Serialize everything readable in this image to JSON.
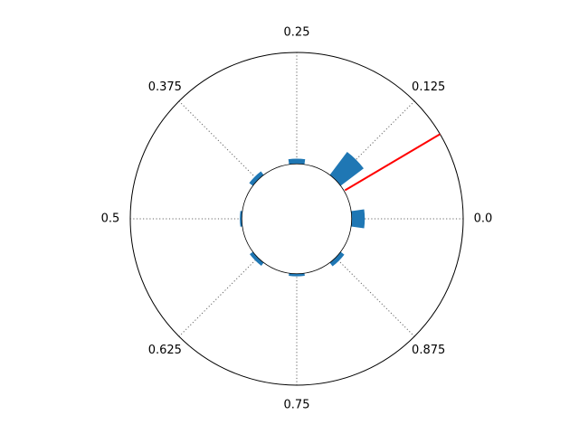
{
  "chart_data": {
    "type": "polar-bar",
    "title": "",
    "angle_unit": "fraction of full turn",
    "angle_tick_labels": [
      "0.0",
      "0.125",
      "0.25",
      "0.375",
      "0.5",
      "0.625",
      "0.75",
      "0.875"
    ],
    "angle_ticks": [
      0.0,
      0.125,
      0.25,
      0.375,
      0.5,
      0.625,
      0.75,
      0.875
    ],
    "bars": [
      {
        "angle": 0.0,
        "value": 1.0
      },
      {
        "angle": 0.125,
        "value": 2.2
      },
      {
        "angle": 0.25,
        "value": 0.4
      },
      {
        "angle": 0.375,
        "value": 0.35
      },
      {
        "angle": 0.5,
        "value": 0.15
      },
      {
        "angle": 0.625,
        "value": 0.3
      },
      {
        "angle": 0.75,
        "value": 0.2
      },
      {
        "angle": 0.875,
        "value": 0.35
      }
    ],
    "bar_color": "#1f77b4",
    "reference_line": {
      "angle": 0.085,
      "color": "#ff0000"
    },
    "inner_radius_fraction": 0.33,
    "grid": true,
    "grid_style": "dotted"
  }
}
